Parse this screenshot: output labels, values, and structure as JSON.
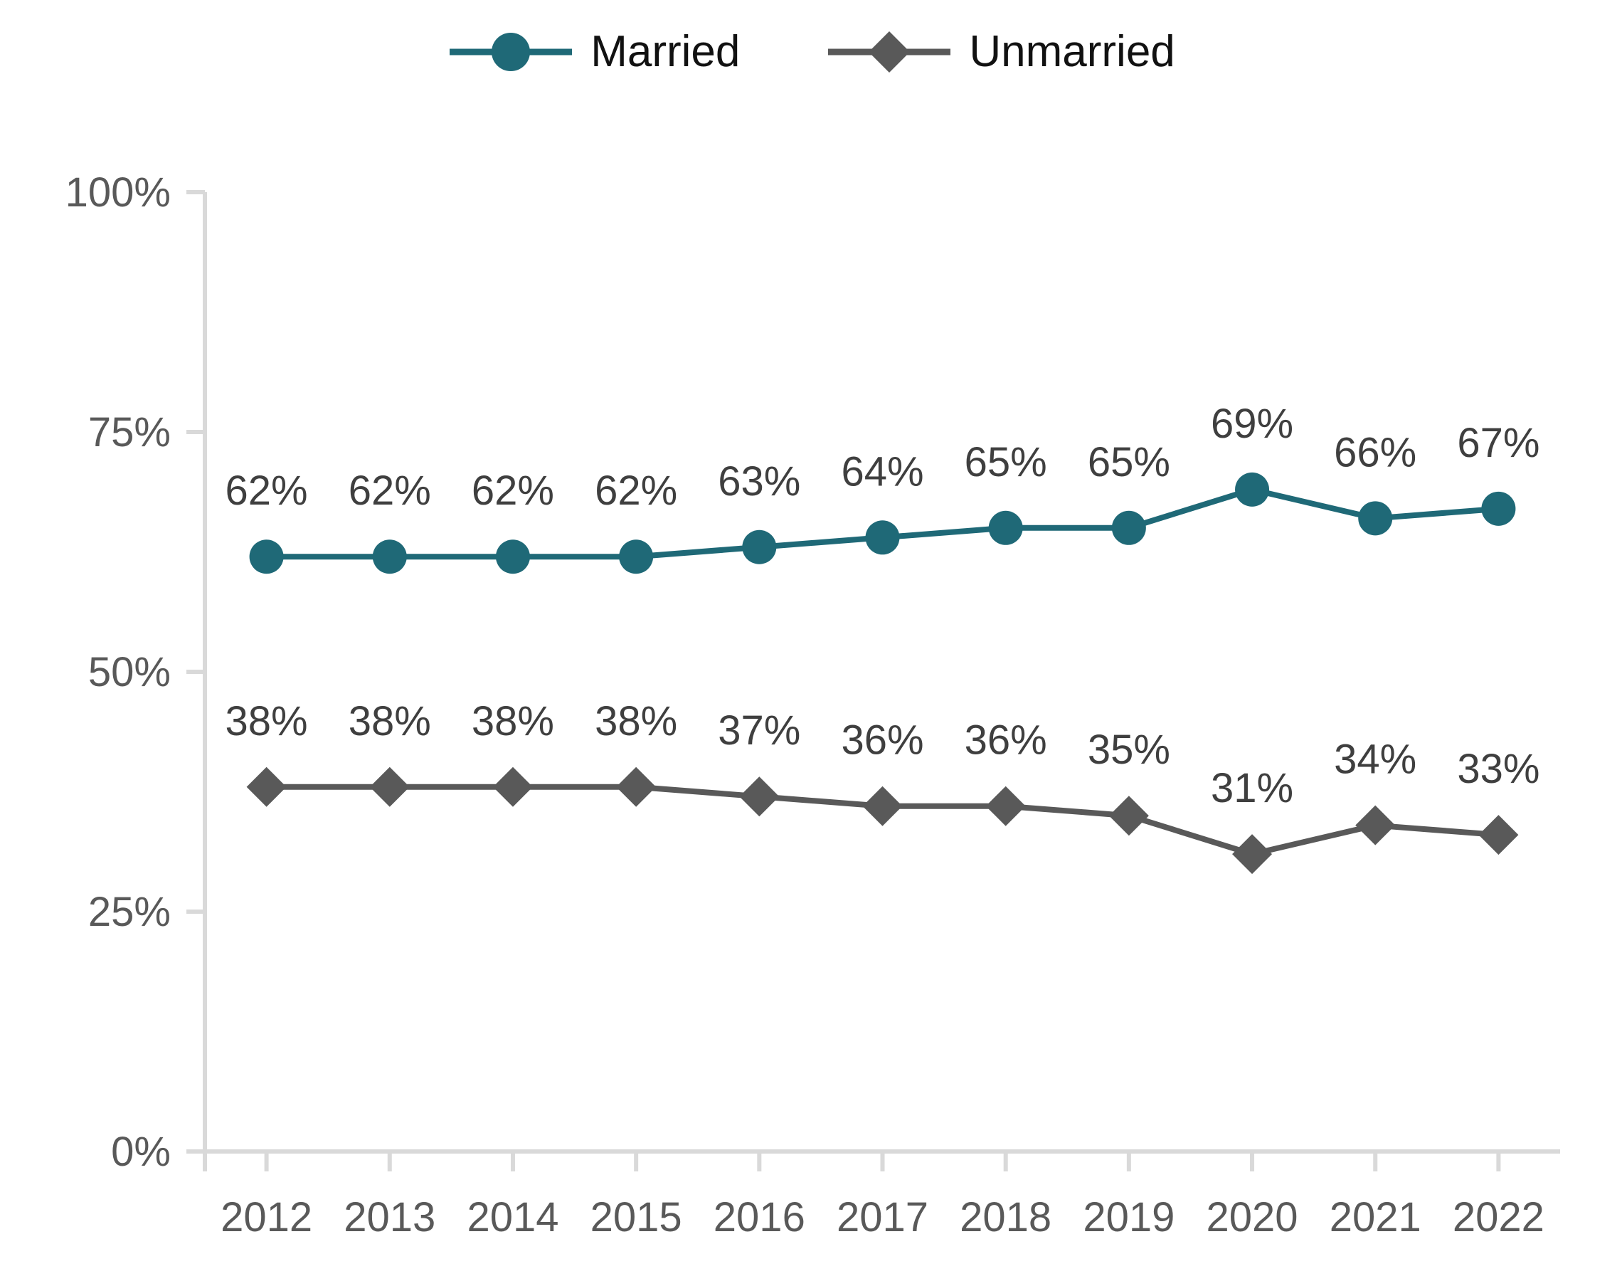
{
  "chart_data": {
    "type": "line",
    "title": "",
    "categories": [
      "2012",
      "2013",
      "2014",
      "2015",
      "2016",
      "2017",
      "2018",
      "2019",
      "2020",
      "2021",
      "2022"
    ],
    "series": [
      {
        "name": "Married",
        "marker": "circle",
        "color": "#1f6977",
        "values": [
          62,
          62,
          62,
          62,
          63,
          64,
          65,
          65,
          69,
          66,
          67
        ],
        "labels": [
          "62%",
          "62%",
          "62%",
          "62%",
          "63%",
          "64%",
          "65%",
          "65%",
          "69%",
          "66%",
          "67%"
        ]
      },
      {
        "name": "Unmarried",
        "marker": "diamond",
        "color": "#595959",
        "values": [
          38,
          38,
          38,
          38,
          37,
          36,
          36,
          35,
          31,
          34,
          33
        ],
        "labels": [
          "38%",
          "38%",
          "38%",
          "38%",
          "37%",
          "36%",
          "36%",
          "35%",
          "31%",
          "34%",
          "33%"
        ]
      }
    ],
    "ylim": [
      0,
      100
    ],
    "yticks": [
      {
        "value": 0,
        "label": "0%"
      },
      {
        "value": 25,
        "label": "25%"
      },
      {
        "value": 50,
        "label": "50%"
      },
      {
        "value": 75,
        "label": "75%"
      },
      {
        "value": 100,
        "label": "100%"
      }
    ],
    "grid": false,
    "legend_position": "top",
    "data_labels": true
  },
  "styles": {
    "axis_color": "#d9d9d9",
    "tick_label_color": "#595959",
    "data_label_color": "#3f3f3f",
    "legend_text_color": "#111111",
    "background": "#ffffff"
  }
}
